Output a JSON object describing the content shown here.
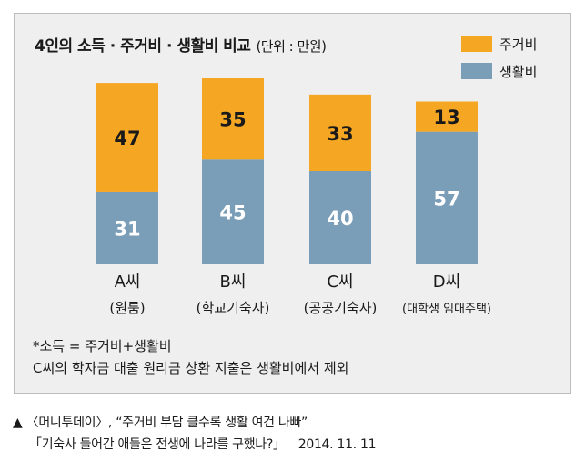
{
  "chart_data": {
    "type": "bar",
    "stacked": true,
    "title": "4인의 소득 · 주거비 · 생활비 비교",
    "unit": "(단위 : 만원)",
    "categories": [
      "A씨",
      "B씨",
      "C씨",
      "D씨"
    ],
    "category_notes": [
      "(원룸)",
      "(학교기숙사)",
      "(공공기숙사)",
      "(대학생 임대주택)"
    ],
    "series": [
      {
        "name": "생활비",
        "values": [
          31,
          45,
          40,
          57
        ],
        "color": "#7a9db8"
      },
      {
        "name": "주거비",
        "values": [
          47,
          35,
          33,
          13
        ],
        "color": "#f5a623"
      }
    ],
    "legend_position": "top-right",
    "grid": false
  },
  "notes": {
    "line1": "*소득 = 주거비+생활비",
    "line2": "C씨의 학자금 대출 원리금 상환 지출은 생활비에서 제외"
  },
  "source": {
    "marker": "▲",
    "line1": "〈머니투데이〉, “주거비 부담 클수록 생활 여건 나빠”",
    "line2": "「기숙사 들어간 애들은 전생에 나라를 구했나?」",
    "date": "2014. 11. 11"
  }
}
